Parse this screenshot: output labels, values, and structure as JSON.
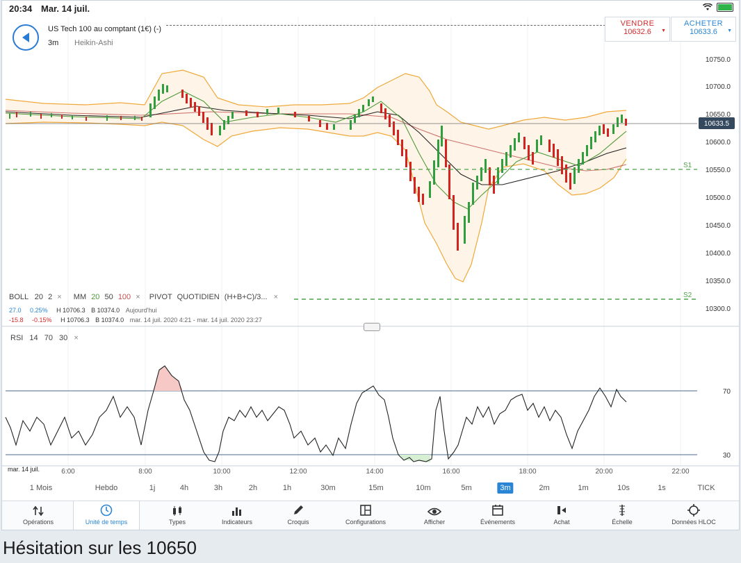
{
  "status": {
    "time": "20:34",
    "date": "Mar. 14 juil."
  },
  "instrument": {
    "name": "US Tech 100 au comptant (1€) (-)",
    "interval": "3m",
    "chart_type": "Heikin-Ashi"
  },
  "trade": {
    "sell_label": "VENDRE",
    "sell_price": "10632.6",
    "buy_label": "ACHETER",
    "buy_price": "10633.6"
  },
  "colors": {
    "sell": "#d52a2a",
    "buy": "#2a86d4",
    "bull": "#2f9e3f",
    "bear": "#d4231f",
    "bollinger": "#f0a83a"
  },
  "price_axis": {
    "labels": [
      "10750.0",
      "10700.0",
      "10650.0",
      "10600.0",
      "10550.0",
      "10500.0",
      "10450.0",
      "10400.0",
      "10350.0",
      "10300.0"
    ],
    "current_price": "10633.5"
  },
  "pivot_levels": {
    "s1": "S1",
    "s2": "S2"
  },
  "indicators": {
    "boll": "BOLL",
    "boll_period": "20",
    "boll_dev": "2",
    "ma": "MM",
    "ma_fast": "20",
    "ma_mid": "50",
    "ma_slow": "100",
    "pivot": "PIVOT",
    "pivot_type": "QUOTIDIEN",
    "pivot_formula": "(H+B+C)/3...",
    "close": "×"
  },
  "info_rows": [
    {
      "change": "27.0",
      "pct": "0.25%",
      "high": "H 10706.3",
      "low": "B 10374.0",
      "period": "Aujourd'hui"
    },
    {
      "change": "-15.8",
      "pct": "-0.15%",
      "high": "H 10706.3",
      "low": "B 10374.0",
      "period": "mar. 14 juil. 2020 4:21 - mar. 14 juil. 2020 23:27"
    }
  ],
  "rsi": {
    "label": "RSI",
    "period": "14",
    "upper": "70",
    "lower": "30",
    "level_70": "70",
    "level_30": "30"
  },
  "time_axis": {
    "date": "mar. 14 juil.",
    "ticks": [
      "6:00",
      "8:00",
      "10:00",
      "12:00",
      "14:00",
      "16:00",
      "18:00",
      "20:00",
      "22:00"
    ]
  },
  "timeframes": [
    "1 Mois",
    "Hebdo",
    "1j",
    "4h",
    "3h",
    "2h",
    "1h",
    "30m",
    "15m",
    "10m",
    "5m",
    "3m",
    "2m",
    "1m",
    "10s",
    "1s",
    "TICK"
  ],
  "active_timeframe": "3m",
  "toolbar": [
    {
      "label": "Opérations",
      "icon": "operations-icon"
    },
    {
      "label": "Unité de temps",
      "icon": "clock-icon"
    },
    {
      "label": "Types",
      "icon": "candles-icon"
    },
    {
      "label": "Indicateurs",
      "icon": "indicators-icon"
    },
    {
      "label": "Croquis",
      "icon": "pencil-icon"
    },
    {
      "label": "Configurations",
      "icon": "layout-icon"
    },
    {
      "label": "Afficher",
      "icon": "eye-icon"
    },
    {
      "label": "Événements",
      "icon": "calendar-icon"
    },
    {
      "label": "Achat",
      "icon": "buy-icon"
    },
    {
      "label": "Échelle",
      "icon": "scale-icon"
    },
    {
      "label": "Données HLOC",
      "icon": "crosshair-icon"
    }
  ],
  "caption": "Hésitation sur les 10650"
}
